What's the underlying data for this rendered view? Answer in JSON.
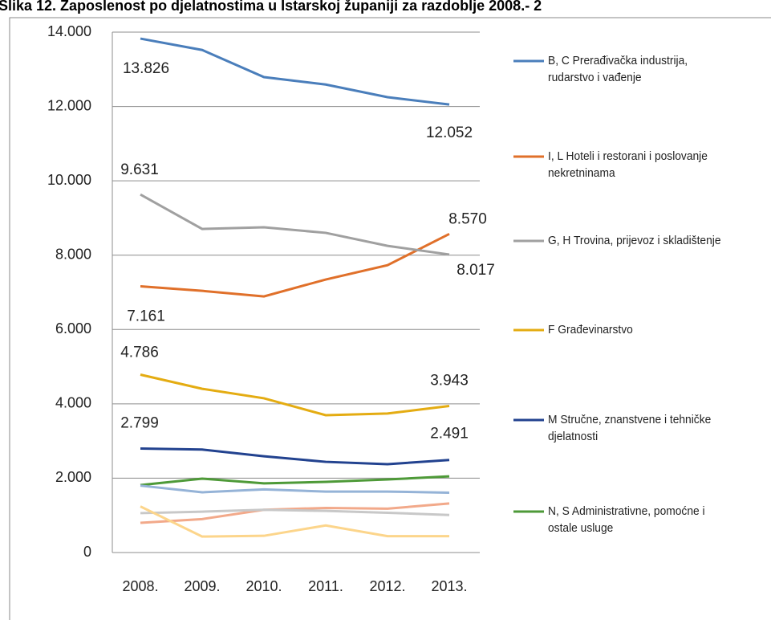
{
  "chart_data": {
    "type": "line",
    "title": "Slika 12. Zaposlenost po djelatnostima u Istarskoj županiji za razdoblje 2008.- 2",
    "categories": [
      "2008.",
      "2009.",
      "2010.",
      "2011.",
      "2012.",
      "2013."
    ],
    "ylim": [
      0,
      14000
    ],
    "yticks": [
      0,
      {
        "value": 2000,
        "label": "2.000"
      },
      {
        "value": 4000,
        "label": "4.000"
      },
      {
        "value": 6000,
        "label": "6.000"
      },
      {
        "value": 8000,
        "label": "8.000"
      },
      {
        "value": 10000,
        "label": "10.000"
      },
      {
        "value": 12000,
        "label": "12.000"
      },
      {
        "value": 14000,
        "label": "14.000"
      }
    ],
    "grid": true,
    "legend": "right",
    "series": [
      {
        "name": "B, C Prerađivačka industrija, rudarstvo i vađenje",
        "color": "#4a7ebb",
        "values": [
          13826,
          13520,
          12790,
          12590,
          12250,
          12052
        ],
        "value_labels": [
          "13.826",
          null,
          null,
          null,
          null,
          "12.052"
        ]
      },
      {
        "name": "I, L Hoteli i restorani i poslovanje nekretninama",
        "color": "#e0702a",
        "values": [
          7161,
          7040,
          6890,
          7345,
          7730,
          8570
        ],
        "value_labels": [
          "7.161",
          null,
          null,
          null,
          null,
          "8.570"
        ]
      },
      {
        "name": "G, H Trovina, prijevoz i skladištenje",
        "color": "#a0a0a0",
        "values": [
          9631,
          8705,
          8750,
          8600,
          8250,
          8017
        ],
        "value_labels": [
          "9.631",
          null,
          null,
          null,
          null,
          "8.017"
        ]
      },
      {
        "name": "F Građevinarstvo",
        "color": "#e4ac12",
        "values": [
          4786,
          4405,
          4150,
          3695,
          3740,
          3943
        ],
        "value_labels": [
          "4.786",
          null,
          null,
          null,
          null,
          "3.943"
        ]
      },
      {
        "name": "M Stručne, znanstvene i tehničke djelatnosti",
        "color": "#22428f",
        "values": [
          2799,
          2770,
          2590,
          2440,
          2376,
          2491
        ],
        "value_labels": [
          "2.799",
          null,
          null,
          null,
          null,
          "2.491"
        ]
      },
      {
        "name": "N, S Administrativne, pomoćne i ostale usluge",
        "color": "#4e9a38",
        "values": [
          1815,
          1987,
          1860,
          1900,
          1965,
          2050
        ]
      },
      {
        "color": "#95b3d7",
        "values": [
          1800,
          1620,
          1700,
          1640,
          1640,
          1610
        ]
      },
      {
        "color": "#f2a98a",
        "values": [
          800,
          900,
          1150,
          1200,
          1180,
          1320
        ]
      },
      {
        "color": "#c8c8c8",
        "values": [
          1060,
          1100,
          1150,
          1120,
          1070,
          1010
        ]
      },
      {
        "color": "#fcd58b",
        "values": [
          1240,
          430,
          450,
          730,
          440,
          440
        ]
      }
    ]
  }
}
